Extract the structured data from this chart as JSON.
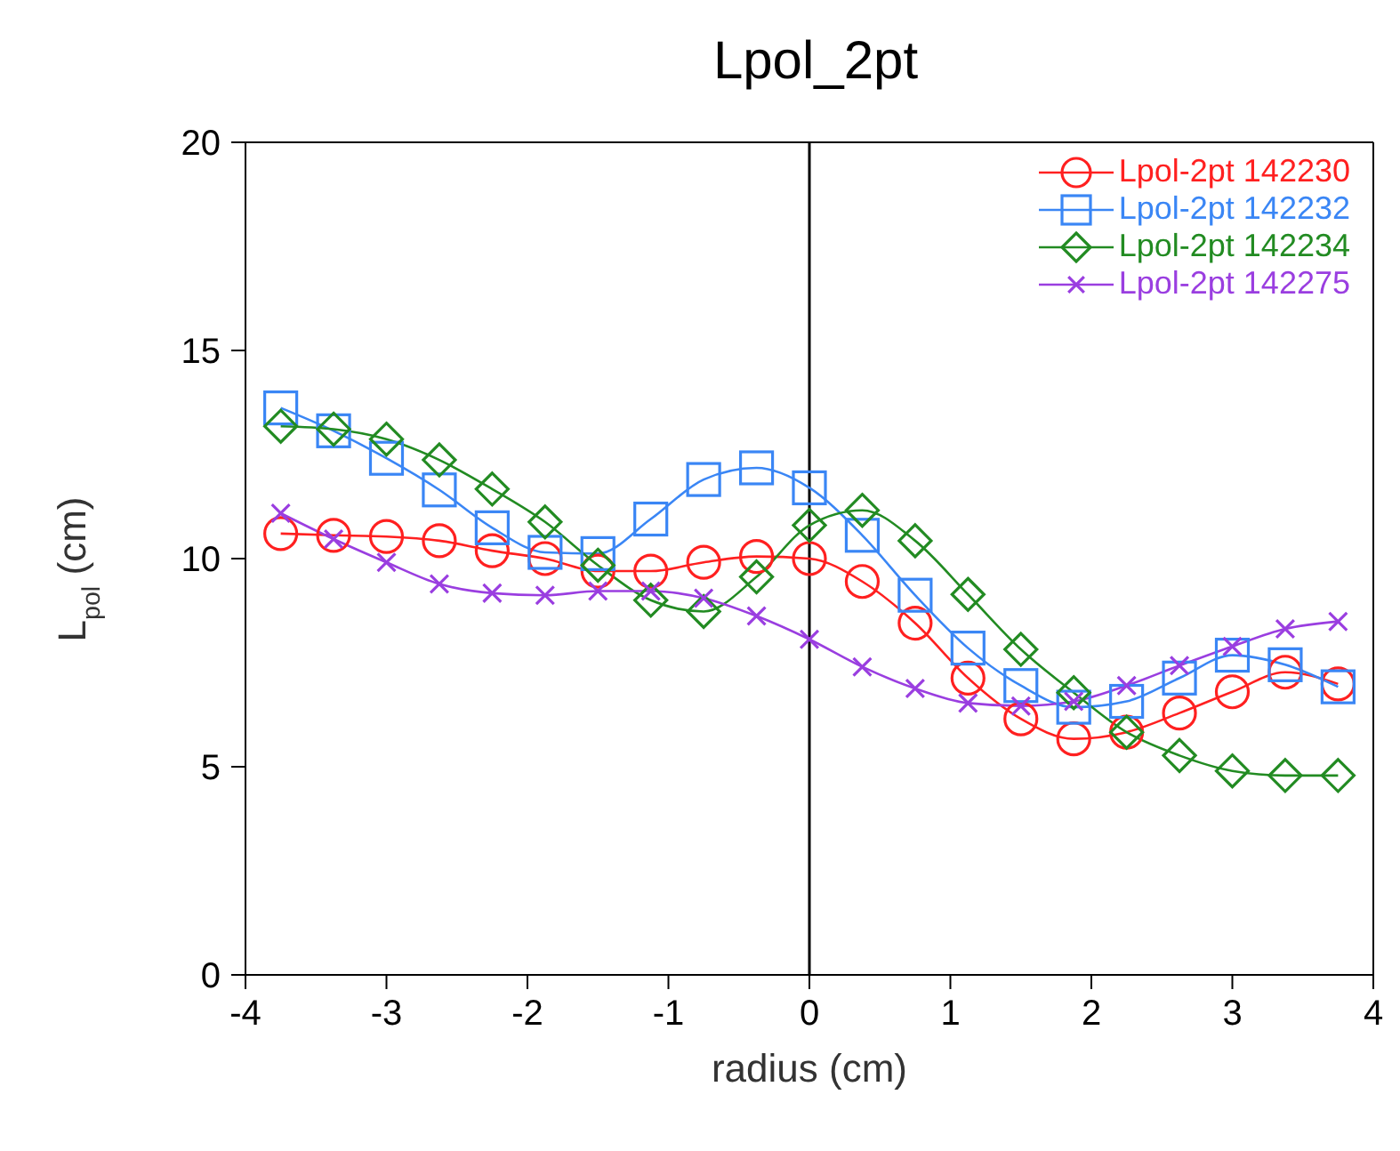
{
  "chart_data": {
    "type": "line",
    "title": "Lpol_2pt",
    "xlabel": "radius (cm)",
    "ylabel": "L$_{pol}$ (cm)",
    "x": [
      -3.75,
      -3.375,
      -3,
      -2.625,
      -2.25,
      -1.875,
      -1.5,
      -1.125,
      -0.75,
      -0.375,
      0,
      0.375,
      0.75,
      1.125,
      1.5,
      1.875,
      2.25,
      2.625,
      3,
      3.375,
      3.75
    ],
    "series": [
      {
        "name": "Lpol-2pt 142230",
        "color": "#ff2020",
        "marker": "circle",
        "values": [
          10.6,
          10.56,
          10.53,
          10.43,
          10.19,
          10.0,
          9.7,
          9.7,
          9.91,
          10.05,
          10.0,
          9.45,
          8.45,
          7.13,
          6.15,
          5.67,
          5.83,
          6.29,
          6.8,
          7.27,
          6.99
        ]
      },
      {
        "name": "Lpol-2pt 142232",
        "color": "#3a86f5",
        "marker": "square",
        "values": [
          13.62,
          13.07,
          12.41,
          11.65,
          10.74,
          10.15,
          10.12,
          10.95,
          11.9,
          12.18,
          11.7,
          10.56,
          9.12,
          7.85,
          6.95,
          6.43,
          6.57,
          7.13,
          7.68,
          7.45,
          6.92
        ]
      },
      {
        "name": "Lpol-2pt 142234",
        "color": "#228b22",
        "marker": "diamond",
        "values": [
          13.18,
          13.11,
          12.87,
          12.37,
          11.67,
          10.88,
          9.84,
          9.0,
          8.73,
          9.56,
          10.8,
          11.16,
          10.43,
          9.14,
          7.82,
          6.78,
          5.83,
          5.27,
          4.9,
          4.79,
          4.79
        ]
      },
      {
        "name": "Lpol-2pt 142275",
        "color": "#9a3ee0",
        "marker": "cross",
        "values": [
          11.09,
          10.47,
          9.91,
          9.39,
          9.17,
          9.12,
          9.22,
          9.22,
          9.05,
          8.62,
          8.06,
          7.4,
          6.88,
          6.53,
          6.46,
          6.57,
          6.95,
          7.43,
          7.89,
          8.31,
          8.49
        ]
      }
    ],
    "xlim": [
      -4,
      4
    ],
    "xticks": [
      -4,
      -3,
      -2,
      -1,
      0,
      1,
      2,
      3,
      4
    ],
    "ylim": [
      0,
      20
    ],
    "yticks": [
      0,
      5,
      10,
      15,
      20
    ],
    "ref_lines": [
      {
        "axis": "x",
        "value": 0,
        "color": "#000000"
      }
    ],
    "grid": false,
    "legend": "top right",
    "line_style": "solid"
  }
}
